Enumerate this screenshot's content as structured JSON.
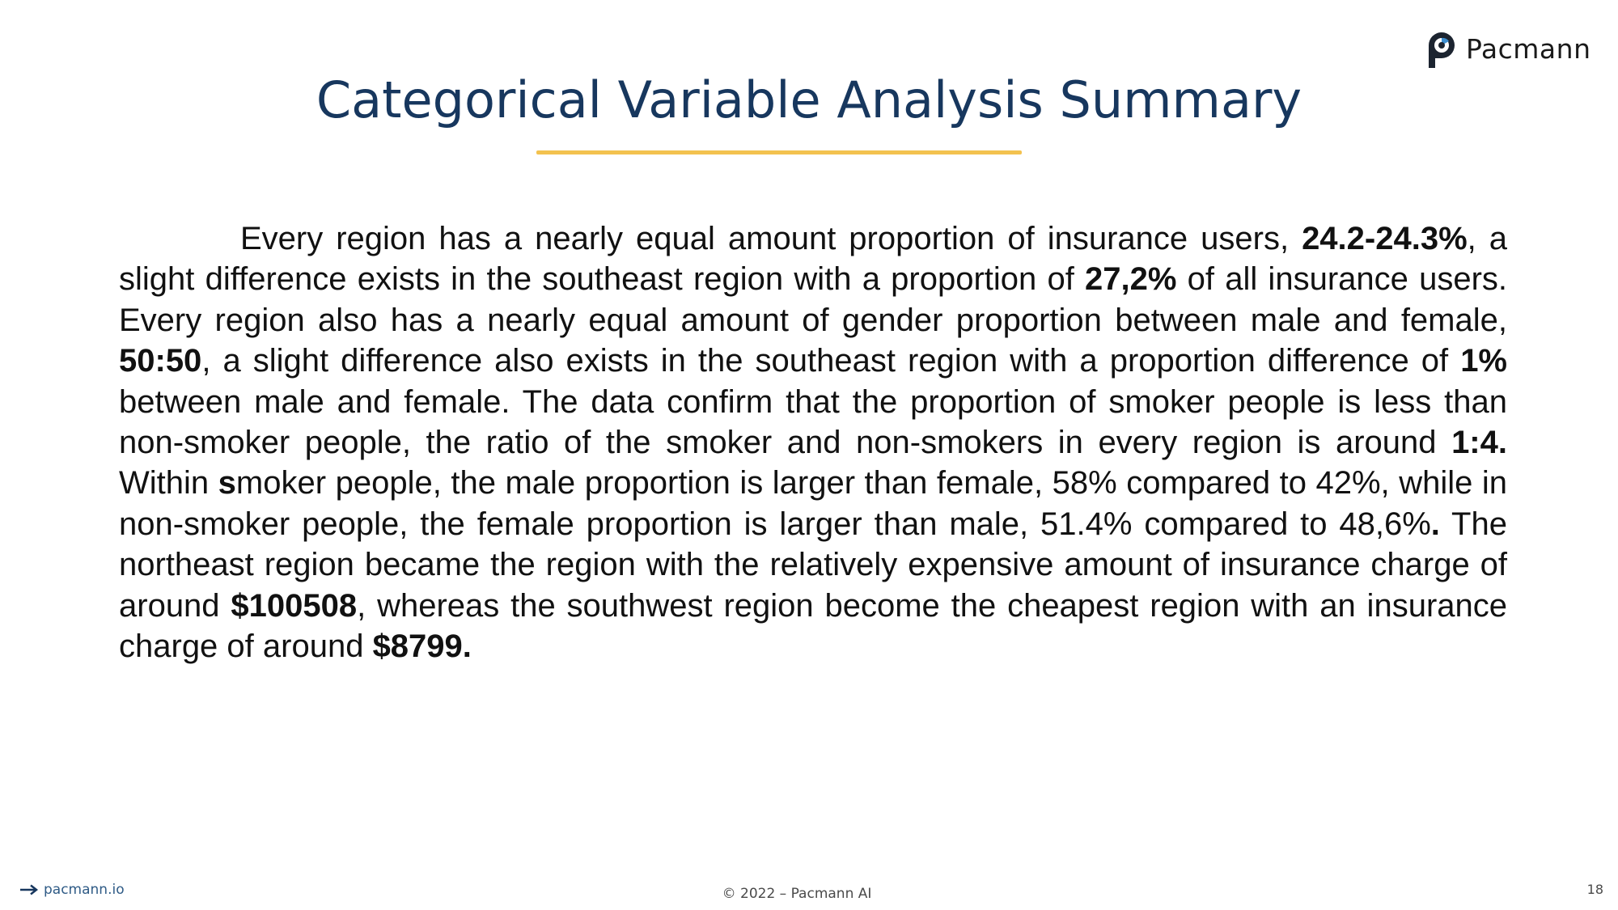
{
  "header": {
    "brand_name": "Pacmann",
    "title": "Categorical Variable Analysis Summary"
  },
  "body": {
    "segments": [
      "Every region has a nearly equal amount proportion of insurance users, ",
      "24.2-24.3%",
      ", a slight difference exists in the southeast region with a proportion of ",
      "27,2%",
      " of all insurance users. Every region also has a nearly equal amount of gender proportion between male and female, ",
      "50:50",
      ", a slight difference also exists in the southeast region with a proportion difference of ",
      "1%",
      " between male and female. The data confirm that the proportion of smoker people is less than non-smoker people, the ratio of the smoker and non-smokers in every region is around ",
      "1:4.",
      " Within ",
      "s",
      "moker people, the male proportion is larger than female, 58% compared to 42%, while in non-smoker people, the female proportion is larger than male, 51.4% compared to 48,6%",
      ".",
      " The northeast region became the region with the relatively expensive amount of insurance charge of around ",
      "$100508",
      ", whereas the southwest region become the cheapest region with an insurance charge of around ",
      "$8799."
    ]
  },
  "footer": {
    "link_text": "pacmann.io",
    "copyright": "© 2022 – Pacmann AI",
    "page_number": "18"
  },
  "colors": {
    "title": "#17375e",
    "underline": "#f3c24f",
    "footer_link": "#2f5b86"
  },
  "icons": {
    "logo": "pacmann-logo-icon",
    "arrow": "arrow-right-icon"
  }
}
